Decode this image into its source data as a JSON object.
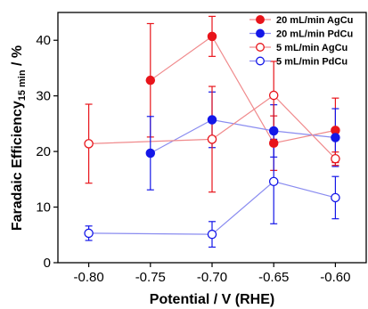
{
  "chart_data": {
    "type": "line",
    "xlabel": "Potential / V (RHE)",
    "ylabel_main": "Faradaic Efficiency",
    "ylabel_sub": "15 min",
    "ylabel_suffix": " / %",
    "xlim": [
      -0.825,
      -0.575
    ],
    "ylim": [
      0,
      45
    ],
    "x_ticks": [
      -0.8,
      -0.75,
      -0.7,
      -0.65,
      -0.6
    ],
    "x_tick_labels": [
      "-0.80",
      "-0.75",
      "-0.70",
      "-0.65",
      "-0.60"
    ],
    "y_ticks": [
      0,
      10,
      20,
      30,
      40
    ],
    "y_tick_labels": [
      "0",
      "10",
      "20",
      "30",
      "40"
    ],
    "legend_position": "top-right",
    "series": [
      {
        "name": "20 mL/min AgCu",
        "color": "#e8141a",
        "line_color": "#f08a8c",
        "filled": true,
        "points": [
          {
            "x": -0.75,
            "y": 32.8,
            "err": 10.2
          },
          {
            "x": -0.7,
            "y": 40.7,
            "err": 3.6
          },
          {
            "x": -0.65,
            "y": 21.5,
            "err": 4.9
          },
          {
            "x": -0.6,
            "y": 23.8,
            "err": 5.8
          }
        ]
      },
      {
        "name": "20 mL/min PdCu",
        "color": "#1417e8",
        "line_color": "#8a8cf0",
        "filled": true,
        "points": [
          {
            "x": -0.75,
            "y": 19.7,
            "err": 6.6
          },
          {
            "x": -0.7,
            "y": 25.7,
            "err": 5.0
          },
          {
            "x": -0.65,
            "y": 23.7,
            "err": 4.7
          },
          {
            "x": -0.6,
            "y": 22.5,
            "err": 5.2
          }
        ]
      },
      {
        "name": "5 mL/min AgCu",
        "color": "#e8141a",
        "line_color": "#f08a8c",
        "filled": false,
        "points": [
          {
            "x": -0.8,
            "y": 21.4,
            "err": 7.1
          },
          {
            "x": -0.7,
            "y": 22.2,
            "err": 9.5
          },
          {
            "x": -0.65,
            "y": 30.1,
            "err": 6.1
          },
          {
            "x": -0.6,
            "y": 18.7,
            "err": 1.2
          }
        ]
      },
      {
        "name": "5 mL/min PdCu",
        "color": "#1417e8",
        "line_color": "#8a8cf0",
        "filled": false,
        "points": [
          {
            "x": -0.8,
            "y": 5.3,
            "err": 1.3
          },
          {
            "x": -0.7,
            "y": 5.1,
            "err": 2.3
          },
          {
            "x": -0.65,
            "y": 14.6,
            "err": 7.6
          },
          {
            "x": -0.6,
            "y": 11.7,
            "err": 3.8
          }
        ]
      }
    ]
  }
}
